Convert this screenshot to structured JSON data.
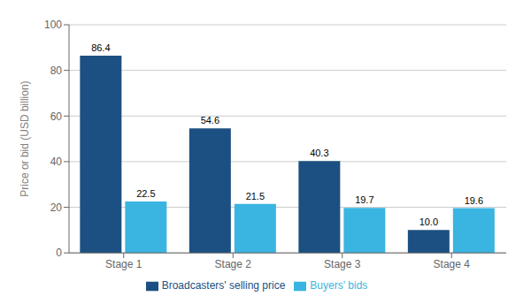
{
  "chart_data": {
    "type": "bar",
    "categories": [
      "Stage 1",
      "Stage 2",
      "Stage 3",
      "Stage 4"
    ],
    "series": [
      {
        "name": "Broadcasters' selling price",
        "color": "#1c5082",
        "values": [
          86.4,
          54.6,
          40.3,
          10.0
        ],
        "value_labels": [
          "86.4",
          "54.6",
          "40.3",
          "10.0"
        ]
      },
      {
        "name": "Buyers' bids",
        "color": "#3ab4e0",
        "values": [
          22.5,
          21.5,
          19.7,
          19.6
        ],
        "value_labels": [
          "22.5",
          "21.5",
          "19.7",
          "19.6"
        ]
      }
    ],
    "ylabel": "Price or bid (USD billion)",
    "ylim": [
      0,
      100
    ],
    "yticks": [
      0,
      20,
      40,
      60,
      80,
      100
    ],
    "grid": true,
    "data_labels": true,
    "legend": "bottom"
  }
}
